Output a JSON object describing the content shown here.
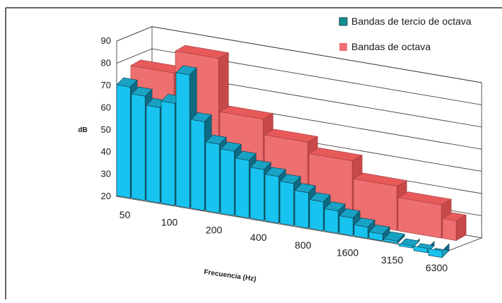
{
  "chart_data": {
    "type": "bar",
    "title": "",
    "xlabel": "Frecuencia (Hz)",
    "ylabel": "dB",
    "ylim": [
      20,
      90
    ],
    "yticks": [
      20,
      30,
      40,
      50,
      60,
      70,
      80,
      90
    ],
    "x_tick_labels": [
      "50",
      "100",
      "200",
      "400",
      "800",
      "1600",
      "3150",
      "6300"
    ],
    "grid": true,
    "legend_position": "top-right",
    "series": [
      {
        "name": "Bandas de tercio de octava",
        "color": "#19c3ef",
        "values": [
          70,
          67,
          63,
          66,
          80,
          60,
          51,
          49,
          46,
          43,
          41,
          39,
          36,
          33,
          30,
          28,
          25,
          23,
          21,
          19,
          18,
          17
        ]
      },
      {
        "name": "Bandas de octava",
        "color": "#ee6f6f",
        "groups": [
          [
            0,
            2
          ],
          [
            3,
            5
          ],
          [
            6,
            8
          ],
          [
            9,
            11
          ],
          [
            12,
            14
          ],
          [
            15,
            17
          ],
          [
            18,
            20
          ],
          [
            21,
            21
          ]
        ],
        "values": [
          74,
          84,
          60,
          53,
          48,
          40,
          35,
          29
        ]
      }
    ]
  }
}
